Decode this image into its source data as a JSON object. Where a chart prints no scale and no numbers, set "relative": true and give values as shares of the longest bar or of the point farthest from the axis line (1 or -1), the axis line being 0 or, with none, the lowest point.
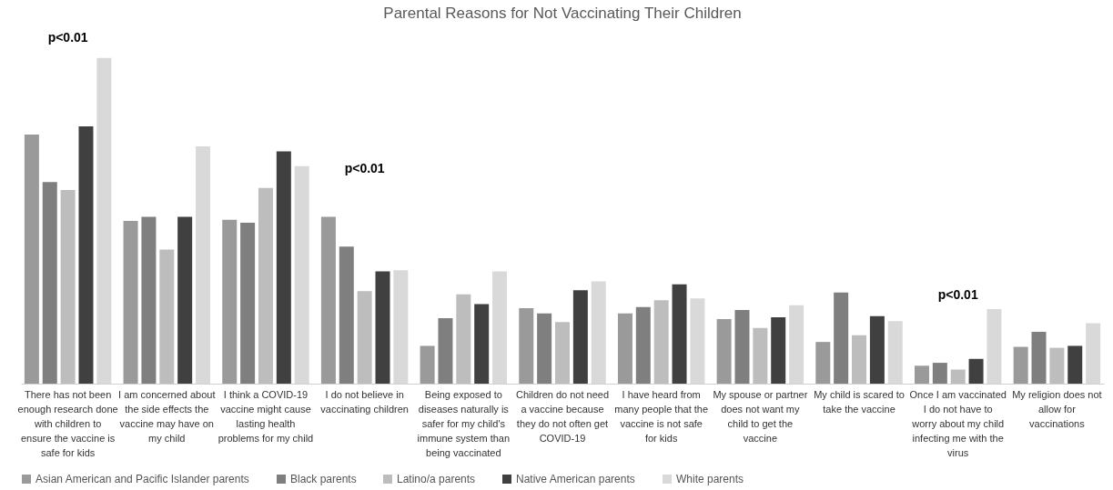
{
  "chart_data": {
    "type": "bar",
    "title": "Parental Reasons for Not Vaccinating Their Children",
    "relative": true,
    "legend": "bottom",
    "categories": [
      "There has not been enough research done with children to ensure the vaccine is safe for kids",
      "I am concerned about the side effects the vaccine may have on my child",
      "I think a COVID-19 vaccine might cause lasting health problems for my child",
      "I do not believe in vaccinating children",
      "Being exposed to diseases naturally is safer for my child's immune system than being vaccinated",
      "Children do not need a vaccine because they do not often get COVID-19",
      "I have heard from many people that the vaccine is not safe for kids",
      "My spouse or partner does not want my child to get the vaccine",
      "My child is scared to take the vaccine",
      "Once I am vaccinated I do not have to worry about my child infecting me with the virus",
      "My religion does not allow for vaccinations"
    ],
    "series": [
      {
        "name": "Asian American and Pacific Islander parents",
        "color": "#9a9a9a",
        "values": [
          0.765,
          0.5,
          0.503,
          0.512,
          0.116,
          0.232,
          0.216,
          0.198,
          0.128,
          0.055,
          0.113
        ]
      },
      {
        "name": "Black parents",
        "color": "#7f7f7f",
        "values": [
          0.619,
          0.512,
          0.494,
          0.421,
          0.201,
          0.216,
          0.235,
          0.226,
          0.28,
          0.064,
          0.159
        ]
      },
      {
        "name": "Latino/a parents",
        "color": "#bdbdbd",
        "values": [
          0.595,
          0.412,
          0.601,
          0.284,
          0.274,
          0.189,
          0.256,
          0.171,
          0.149,
          0.043,
          0.11
        ]
      },
      {
        "name": "Native American parents",
        "color": "#404040",
        "values": [
          0.79,
          0.512,
          0.713,
          0.345,
          0.244,
          0.287,
          0.305,
          0.204,
          0.207,
          0.076,
          0.116
        ]
      },
      {
        "name": "White parents",
        "color": "#d9d9d9",
        "values": [
          1,
          0.729,
          0.668,
          0.348,
          0.345,
          0.314,
          0.262,
          0.241,
          0.192,
          0.229,
          0.186
        ]
      }
    ],
    "annotations": [
      "p<0.01",
      "p<0.01",
      "p<0.01"
    ]
  }
}
